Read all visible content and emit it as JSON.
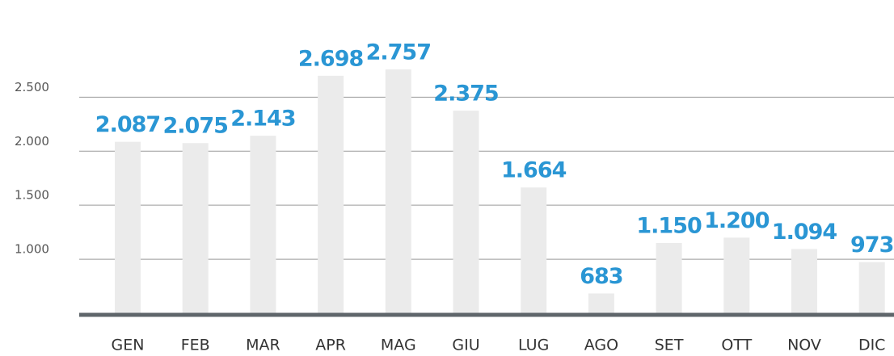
{
  "chart_data": {
    "type": "bar",
    "categories": [
      "GEN",
      "FEB",
      "MAR",
      "APR",
      "MAG",
      "GIU",
      "LUG",
      "AGO",
      "SET",
      "OTT",
      "NOV",
      "DIC"
    ],
    "values": [
      2087,
      2075,
      2143,
      2698,
      2757,
      2375,
      1664,
      683,
      1150,
      1200,
      1094,
      973
    ],
    "value_labels": [
      "2.087",
      "2.075",
      "2.143",
      "2.698",
      "2.757",
      "2.375",
      "1.664",
      "683",
      "1.150",
      "1.200",
      "1.094",
      "973"
    ],
    "color": "#ebebeb",
    "label_color": "#2a96d4",
    "ylim": [
      500,
      3250
    ],
    "yticks": [
      {
        "value": 1000,
        "label": "1.000"
      },
      {
        "value": 1500,
        "label": "1.500"
      },
      {
        "value": 2000,
        "label": "2.000"
      },
      {
        "value": 2500,
        "label": "2.500"
      }
    ],
    "grid": true
  }
}
